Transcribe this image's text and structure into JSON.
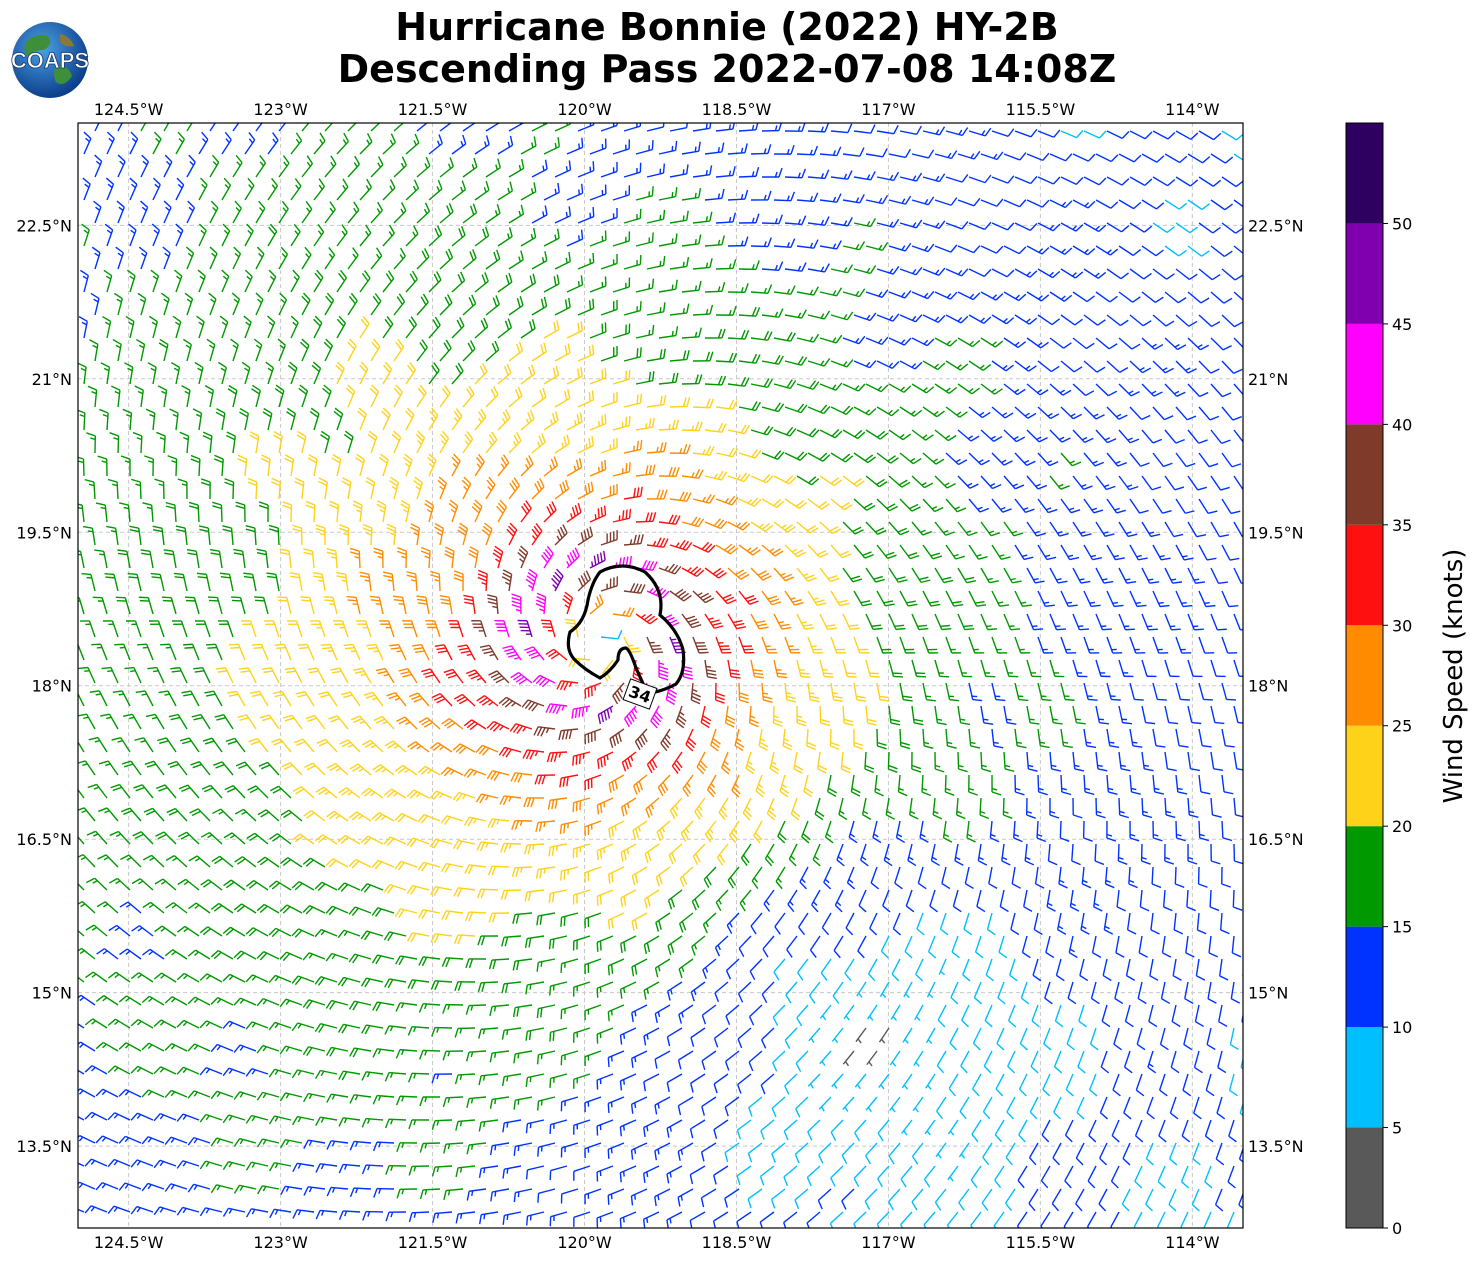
{
  "title": {
    "line1": "Hurricane Bonnie (2022) HY-2B",
    "line2": "Descending Pass 2022-07-08 14:08Z"
  },
  "logo": {
    "text": "COAPS",
    "icon": "globe-logo-icon"
  },
  "map": {
    "lon_range": [
      -125.0,
      -113.5
    ],
    "lat_range": [
      12.7,
      23.5
    ],
    "lon_ticks": [
      {
        "value": -124.5,
        "label": "124.5°W"
      },
      {
        "value": -123.0,
        "label": "123°W"
      },
      {
        "value": -121.5,
        "label": "121.5°W"
      },
      {
        "value": -120.0,
        "label": "120°W"
      },
      {
        "value": -118.5,
        "label": "118.5°W"
      },
      {
        "value": -117.0,
        "label": "117°W"
      },
      {
        "value": -115.5,
        "label": "115.5°W"
      },
      {
        "value": -114.0,
        "label": "114°W"
      }
    ],
    "lat_ticks": [
      {
        "value": 22.5,
        "label": "22.5°N"
      },
      {
        "value": 21.0,
        "label": "21°N"
      },
      {
        "value": 19.5,
        "label": "19.5°N"
      },
      {
        "value": 18.0,
        "label": "18°N"
      },
      {
        "value": 16.5,
        "label": "16.5°N"
      },
      {
        "value": 15.0,
        "label": "15°N"
      },
      {
        "value": 13.5,
        "label": "13.5°N"
      }
    ],
    "grid": true,
    "storm_center": {
      "lon": -119.85,
      "lat": 18.45
    },
    "contour_label": "34"
  },
  "colorbar": {
    "title": "Wind Speed (knots)",
    "bins": [
      {
        "min": 0,
        "max": 5,
        "color": "#595959"
      },
      {
        "min": 5,
        "max": 10,
        "color": "#00bfff"
      },
      {
        "min": 10,
        "max": 15,
        "color": "#0033ff"
      },
      {
        "min": 15,
        "max": 20,
        "color": "#009900"
      },
      {
        "min": 20,
        "max": 25,
        "color": "#ffd21a"
      },
      {
        "min": 25,
        "max": 30,
        "color": "#ff8c00"
      },
      {
        "min": 30,
        "max": 35,
        "color": "#ff1010"
      },
      {
        "min": 35,
        "max": 40,
        "color": "#7f3a2a"
      },
      {
        "min": 40,
        "max": 45,
        "color": "#ff00ff"
      },
      {
        "min": 45,
        "max": 50,
        "color": "#8000b0"
      },
      {
        "min": 50,
        "max": 55,
        "color": "#2e0060"
      }
    ],
    "tick_labels": [
      "0",
      "5",
      "10",
      "15",
      "20",
      "25",
      "30",
      "35",
      "40",
      "45",
      "50"
    ]
  }
}
